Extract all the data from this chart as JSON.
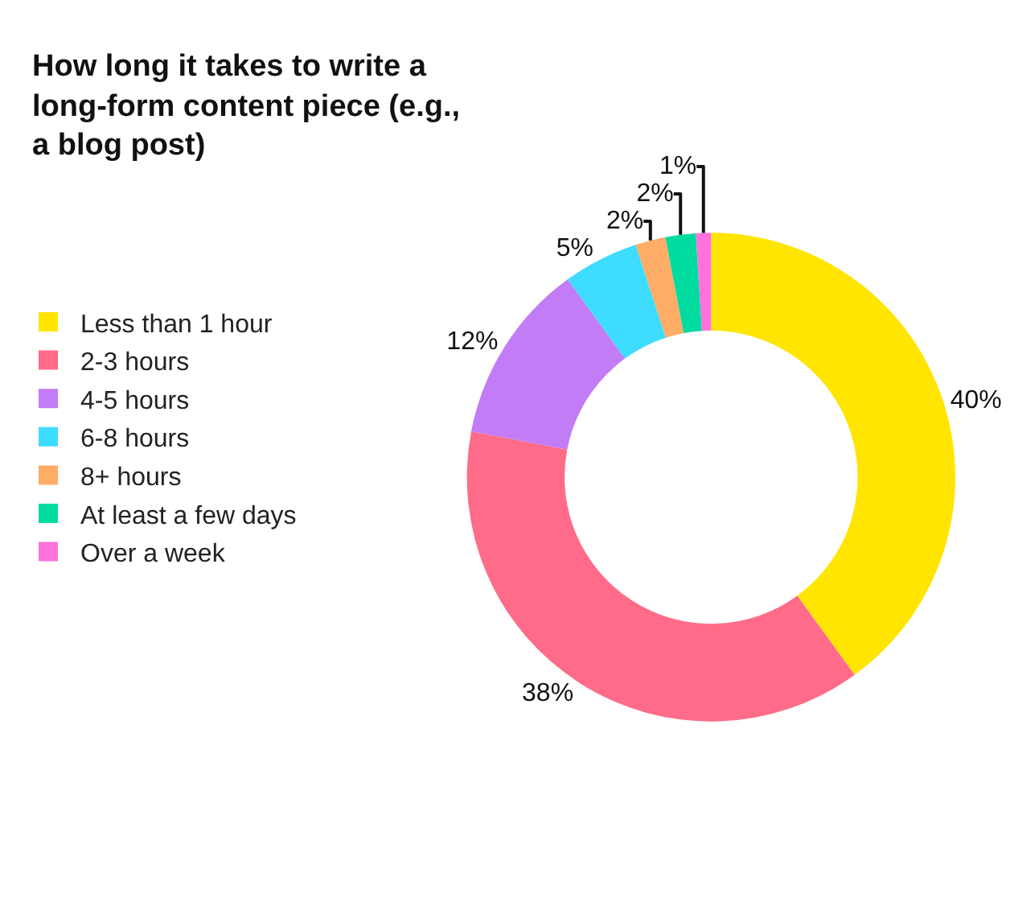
{
  "chart_data": {
    "type": "donut",
    "title": "How long it takes to write a long-form content piece (e.g., a blog post)",
    "categories": [
      "Less than 1 hour",
      "2-3 hours",
      "4-5 hours",
      "6-8 hours",
      "8+ hours",
      "At least a few days",
      "Over a week"
    ],
    "values": [
      40,
      38,
      12,
      5,
      2,
      2,
      1
    ],
    "colors": [
      "#ffe500",
      "#ff6b88",
      "#c27cf6",
      "#3edcff",
      "#ffac66",
      "#00dba0",
      "#ff72dc"
    ],
    "value_labels": [
      "40%",
      "38%",
      "12%",
      "5%",
      "2%",
      "2%",
      "1%"
    ],
    "legend": "left"
  }
}
